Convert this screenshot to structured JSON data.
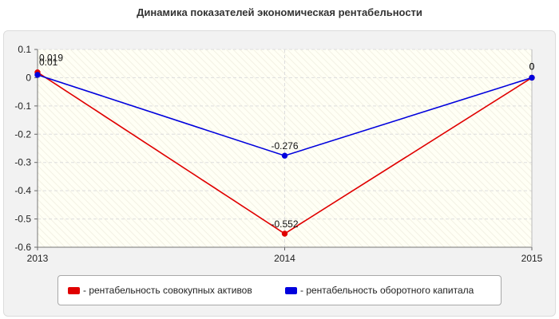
{
  "colors": {
    "series1": "#e00000",
    "series2": "#0000dd",
    "grid": "#dddddd",
    "plot_bg": "#fffff5"
  },
  "chart_data": {
    "type": "line",
    "title": "Динамика показателей экономическая рентабельности",
    "x": [
      "2013",
      "2014",
      "2015"
    ],
    "ylim": [
      -0.6,
      0.1
    ],
    "yticks": [
      "0.1",
      "0",
      "-0.1",
      "-0.2",
      "-0.3",
      "-0.4",
      "-0.5",
      "-0.6"
    ],
    "grid": true,
    "legend_position": "bottom",
    "series": [
      {
        "name": "- рентабельность совокупных активов",
        "values": [
          0.019,
          -0.552,
          0
        ],
        "labels": [
          "0.019",
          "-0.552",
          "0"
        ]
      },
      {
        "name": "- рентабельность оборотного капитала",
        "values": [
          0.01,
          -0.276,
          0
        ],
        "labels": [
          "0.01",
          "-0.276",
          "0"
        ]
      }
    ]
  }
}
